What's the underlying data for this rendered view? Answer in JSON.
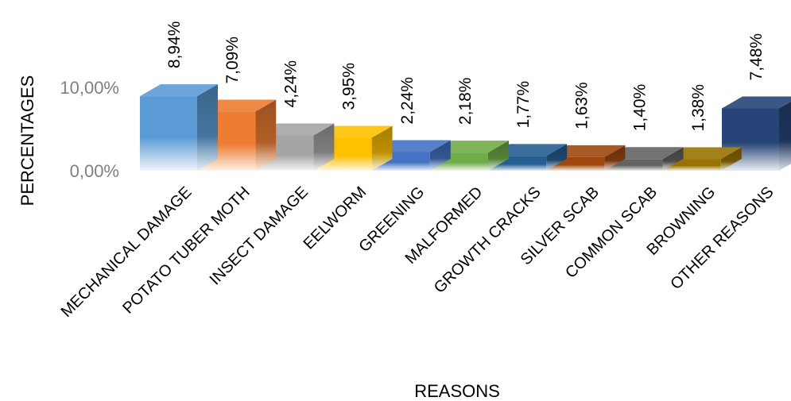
{
  "chart_data": {
    "type": "bar",
    "title": "",
    "xlabel": "REASONS",
    "ylabel": "PERCENTAGES",
    "ylim": [
      0,
      10
    ],
    "y_ticks": [
      "0,00%",
      "10,00%"
    ],
    "grid": false,
    "legend": "none",
    "style": "3d-columns",
    "categories": [
      "MECHANICAL DAMAGE",
      "POTATO TUBER MOTH",
      "INSECT DAMAGE",
      "EELWORM",
      "GREENING",
      "MALFORMED",
      "GROWTH CRACKS",
      "SILVER SCAB",
      "COMMON SCAB",
      "BROWNING",
      "OTHER REASONS"
    ],
    "values": [
      8.94,
      7.09,
      4.24,
      3.95,
      2.24,
      2.18,
      1.77,
      1.63,
      1.4,
      1.38,
      7.48
    ],
    "value_labels": [
      "8,94%",
      "7,09%",
      "4,24%",
      "3,95%",
      "2,24%",
      "2,18%",
      "1,77%",
      "1,63%",
      "1,40%",
      "1,38%",
      "7,48%"
    ],
    "colors": [
      "#5b9bd5",
      "#ed7d31",
      "#a5a5a5",
      "#ffc000",
      "#4472c4",
      "#70ad47",
      "#255e91",
      "#9e480e",
      "#636363",
      "#997300",
      "#264478"
    ]
  }
}
